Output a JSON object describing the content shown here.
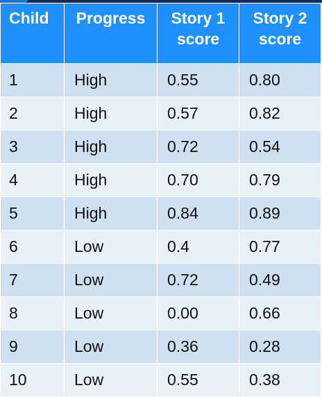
{
  "table": {
    "headers": {
      "child": "Child",
      "progress": "Progress",
      "story1_line1": "Story 1",
      "story1_line2": "score",
      "story2_line1": "Story 2",
      "story2_line2": "score"
    },
    "rows": [
      {
        "child": "1",
        "progress": "High",
        "story1": "0.55",
        "story2": "0.80"
      },
      {
        "child": "2",
        "progress": "High",
        "story1": "0.57",
        "story2": "0.82"
      },
      {
        "child": "3",
        "progress": "High",
        "story1": "0.72",
        "story2": "0.54"
      },
      {
        "child": "4",
        "progress": "High",
        "story1": "0.70",
        "story2": "0.79"
      },
      {
        "child": "5",
        "progress": "High",
        "story1": "0.84",
        "story2": "0.89"
      },
      {
        "child": "6",
        "progress": "Low",
        "story1": "0.4",
        "story2": "0.77"
      },
      {
        "child": "7",
        "progress": "Low",
        "story1": "0.72",
        "story2": "0.49"
      },
      {
        "child": "8",
        "progress": "Low",
        "story1": "0.00",
        "story2": "0.66"
      },
      {
        "child": "9",
        "progress": "Low",
        "story1": "0.36",
        "story2": "0.28"
      },
      {
        "child": "10",
        "progress": "Low",
        "story1": "0.55",
        "story2": "0.38"
      }
    ]
  },
  "colors": {
    "header_bg": "#1e90ff",
    "row_dark": "#cfe0f0",
    "row_light": "#e8f0f8"
  }
}
